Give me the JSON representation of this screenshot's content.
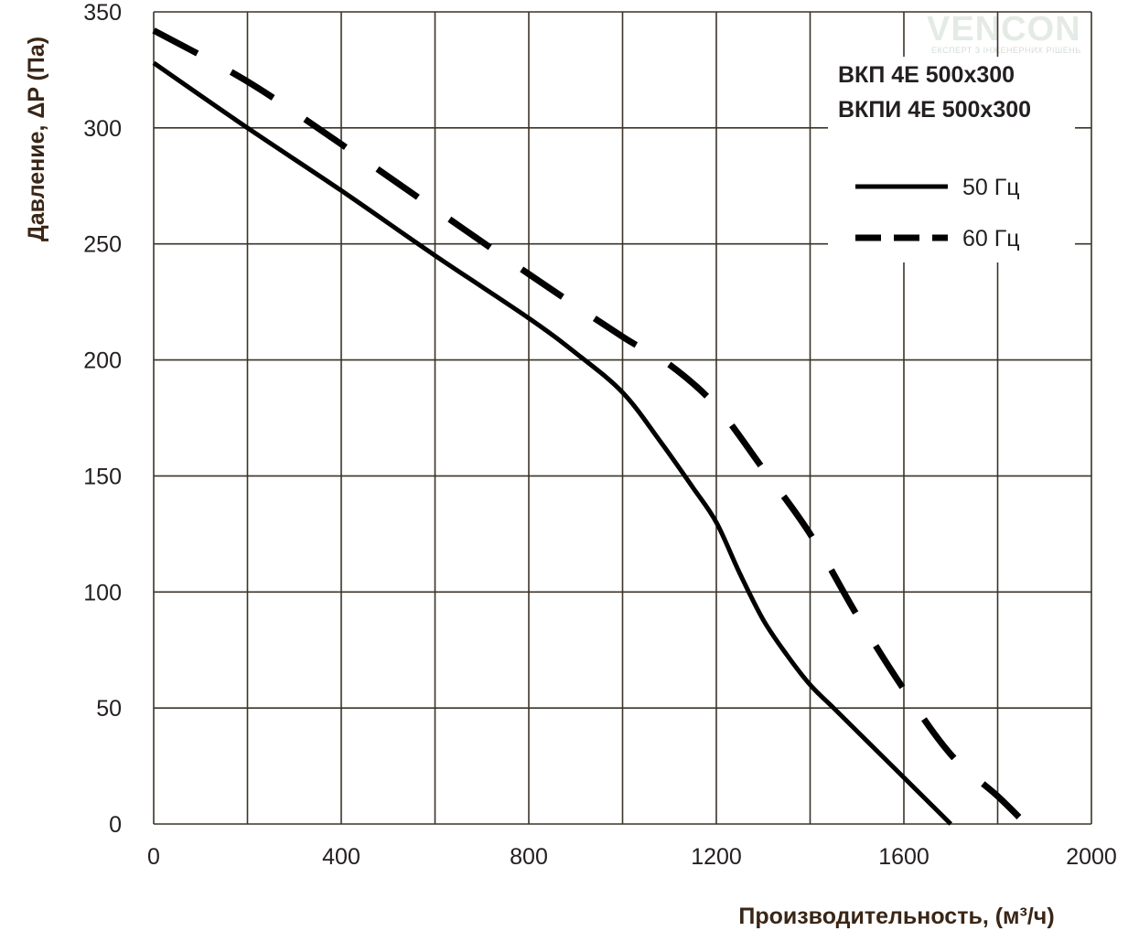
{
  "logo": {
    "name": "VENCON",
    "tagline": "ЕКСПЕРТ З ІНЖЕНЕРНИХ РІШЕНЬ"
  },
  "models": [
    "ВКП 4Е 500x300",
    "ВКПИ 4Е 500x300"
  ],
  "chart_data": {
    "type": "line",
    "xlabel": "Производительность, (м³/ч)",
    "ylabel": "Давление, ΔP (Па)",
    "xlim": [
      0,
      2000
    ],
    "ylim": [
      0,
      350
    ],
    "xticks": [
      0,
      400,
      800,
      1200,
      1600,
      2000
    ],
    "yticks": [
      0,
      50,
      100,
      150,
      200,
      250,
      300,
      350
    ],
    "grid": true,
    "legend_position": "top-right",
    "series": [
      {
        "name": "50 Гц",
        "style": "solid",
        "color": "#000000",
        "x": [
          0,
          200,
          400,
          600,
          800,
          900,
          1000,
          1080,
          1150,
          1200,
          1250,
          1300,
          1350,
          1400,
          1450,
          1500,
          1550,
          1600,
          1650,
          1700
        ],
        "y": [
          328,
          300,
          273,
          245,
          218,
          203,
          186,
          165,
          145,
          130,
          108,
          88,
          73,
          60,
          50,
          40,
          30,
          20,
          10,
          0
        ]
      },
      {
        "name": "60 Гц",
        "style": "dashed",
        "color": "#000000",
        "x": [
          0,
          200,
          400,
          600,
          800,
          1000,
          1100,
          1200,
          1300,
          1400,
          1500,
          1600,
          1700,
          1800,
          1860
        ],
        "y": [
          342,
          320,
          293,
          265,
          237,
          210,
          198,
          180,
          153,
          125,
          90,
          58,
          30,
          12,
          0
        ]
      }
    ]
  }
}
